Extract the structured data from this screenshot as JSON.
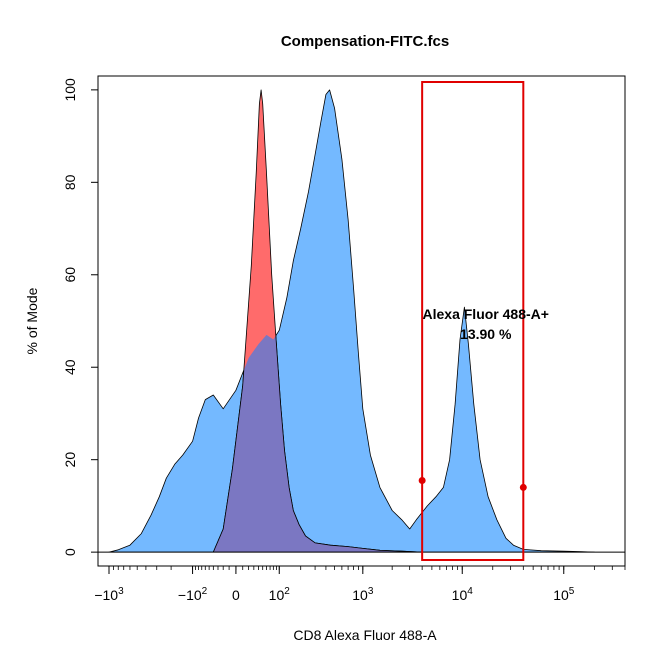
{
  "chart_data": {
    "type": "area",
    "title": "Compensation-FITC.fcs",
    "xlabel": "CD8 Alexa Fluor 488-A",
    "ylabel": "% of Mode",
    "x_scale": "biexponential",
    "xlim": [
      -1300,
      400000
    ],
    "ylim": [
      -3,
      103
    ],
    "y_ticks": [
      0,
      20,
      40,
      60,
      80,
      100
    ],
    "x_tick_labels": [
      {
        "value": -1000,
        "base": "−10",
        "exp": "3"
      },
      {
        "value": -100,
        "base": "−10",
        "exp": "2"
      },
      {
        "value": 0,
        "base": "0",
        "exp": ""
      },
      {
        "value": 100,
        "base": "10",
        "exp": "2"
      },
      {
        "value": 1000,
        "base": "10",
        "exp": "3"
      },
      {
        "value": 10000,
        "base": "10",
        "exp": "4"
      },
      {
        "value": 100000,
        "base": "10",
        "exp": "5"
      }
    ],
    "grid": false,
    "series": [
      {
        "color": "#74b9ff",
        "points": [
          [
            -1000,
            0
          ],
          [
            -800,
            0.5
          ],
          [
            -600,
            1.5
          ],
          [
            -450,
            4
          ],
          [
            -350,
            8
          ],
          [
            -280,
            12
          ],
          [
            -230,
            16
          ],
          [
            -180,
            19
          ],
          [
            -140,
            21
          ],
          [
            -100,
            24
          ],
          [
            -80,
            29
          ],
          [
            -60,
            33
          ],
          [
            -40,
            34
          ],
          [
            -20,
            31
          ],
          [
            0,
            35
          ],
          [
            20,
            42
          ],
          [
            40,
            45
          ],
          [
            60,
            47
          ],
          [
            80,
            46
          ],
          [
            100,
            48
          ],
          [
            130,
            55
          ],
          [
            160,
            63
          ],
          [
            200,
            70
          ],
          [
            250,
            78
          ],
          [
            300,
            86
          ],
          [
            350,
            93
          ],
          [
            400,
            99
          ],
          [
            440,
            100
          ],
          [
            500,
            96
          ],
          [
            600,
            85
          ],
          [
            700,
            72
          ],
          [
            800,
            57
          ],
          [
            900,
            43
          ],
          [
            1000,
            31
          ],
          [
            1200,
            21
          ],
          [
            1500,
            14
          ],
          [
            2000,
            9
          ],
          [
            2500,
            7
          ],
          [
            3000,
            5
          ],
          [
            3500,
            7
          ],
          [
            4500,
            10
          ],
          [
            5500,
            12
          ],
          [
            6500,
            14
          ],
          [
            7500,
            20
          ],
          [
            8500,
            32
          ],
          [
            9500,
            46
          ],
          [
            10500,
            53
          ],
          [
            11500,
            45
          ],
          [
            13000,
            32
          ],
          [
            15000,
            20
          ],
          [
            18000,
            12
          ],
          [
            22000,
            7
          ],
          [
            27000,
            3
          ],
          [
            32000,
            1.5
          ],
          [
            40000,
            0.6
          ],
          [
            60000,
            0.3
          ],
          [
            100000,
            0.2
          ],
          [
            150000,
            0.1
          ],
          [
            200000,
            0
          ]
        ]
      },
      {
        "color": "#ff6b6b",
        "points": [
          [
            -40,
            0
          ],
          [
            -20,
            5
          ],
          [
            -5,
            18
          ],
          [
            10,
            36
          ],
          [
            25,
            62
          ],
          [
            35,
            82
          ],
          [
            42,
            97
          ],
          [
            46,
            100
          ],
          [
            50,
            97
          ],
          [
            60,
            82
          ],
          [
            75,
            60
          ],
          [
            90,
            45
          ],
          [
            105,
            32
          ],
          [
            120,
            22
          ],
          [
            140,
            14
          ],
          [
            160,
            9
          ],
          [
            190,
            6
          ],
          [
            230,
            3.5
          ],
          [
            300,
            2
          ],
          [
            450,
            1.5
          ],
          [
            700,
            1.2
          ],
          [
            1000,
            0.8
          ],
          [
            1500,
            0.4
          ],
          [
            2500,
            0.2
          ],
          [
            4000,
            0
          ]
        ]
      }
    ],
    "overlap_color": "#7b77c2",
    "gate": {
      "name": "Alexa Fluor 488-A+",
      "percent": "13.90 %",
      "x_range": [
        4000,
        40000
      ],
      "color": "#e00000",
      "handle_y": [
        15.5,
        14
      ]
    }
  }
}
